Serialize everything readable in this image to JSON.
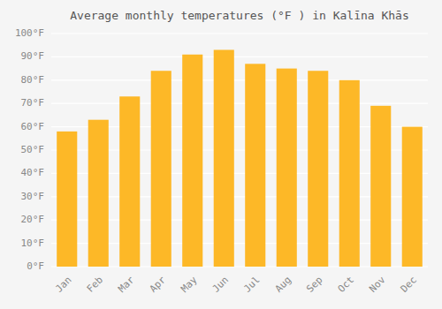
{
  "chart_data": {
    "type": "bar",
    "title": "Average monthly temperatures (°F ) in Kalīna Khās",
    "categories": [
      "Jan",
      "Feb",
      "Mar",
      "Apr",
      "May",
      "Jun",
      "Jul",
      "Aug",
      "Sep",
      "Oct",
      "Nov",
      "Dec"
    ],
    "values": [
      58,
      63,
      73,
      84,
      91,
      93,
      87,
      85,
      84,
      80,
      69,
      60
    ],
    "color": "#FDB827",
    "ylim": [
      0,
      100
    ],
    "yticks": [
      {
        "value": 0,
        "label": "0°F"
      },
      {
        "value": 10,
        "label": "10°F"
      },
      {
        "value": 20,
        "label": "20°F"
      },
      {
        "value": 30,
        "label": "30°F"
      },
      {
        "value": 40,
        "label": "40°F"
      },
      {
        "value": 50,
        "label": "50°F"
      },
      {
        "value": 60,
        "label": "60°F"
      },
      {
        "value": 70,
        "label": "70°F"
      },
      {
        "value": 80,
        "label": "80°F"
      },
      {
        "value": 90,
        "label": "90°F"
      },
      {
        "value": 100,
        "label": "100°F"
      }
    ],
    "grid": true
  }
}
